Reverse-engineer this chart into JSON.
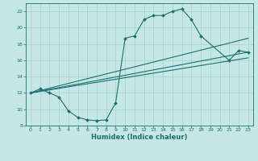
{
  "xlabel": "Humidex (Indice chaleur)",
  "xlim": [
    -0.5,
    23.5
  ],
  "ylim": [
    8,
    23
  ],
  "xticks": [
    0,
    1,
    2,
    3,
    4,
    5,
    6,
    7,
    8,
    9,
    10,
    11,
    12,
    13,
    14,
    15,
    16,
    17,
    18,
    19,
    20,
    21,
    22,
    23
  ],
  "yticks": [
    8,
    10,
    12,
    14,
    16,
    18,
    20,
    22
  ],
  "bg_color": "#c5e8e4",
  "grid_color": "#a8d0cc",
  "line_color": "#1a7070",
  "curve1_x": [
    0,
    1,
    2,
    3,
    4,
    5,
    6,
    7,
    8,
    9,
    10,
    11,
    12,
    13,
    14,
    15,
    16,
    17,
    18,
    21,
    22,
    23
  ],
  "curve1_y": [
    12,
    12.5,
    12,
    11.5,
    9.8,
    9.0,
    8.7,
    8.6,
    8.7,
    10.8,
    18.7,
    19.0,
    21.0,
    21.5,
    21.5,
    22.0,
    22.3,
    21.0,
    19.0,
    16.0,
    17.2,
    17.0
  ],
  "line1_x": [
    0,
    23
  ],
  "line1_y": [
    12.0,
    17.0
  ],
  "line2_x": [
    0,
    23
  ],
  "line2_y": [
    12.0,
    16.3
  ],
  "line3_x": [
    0,
    23
  ],
  "line3_y": [
    12.0,
    18.7
  ]
}
